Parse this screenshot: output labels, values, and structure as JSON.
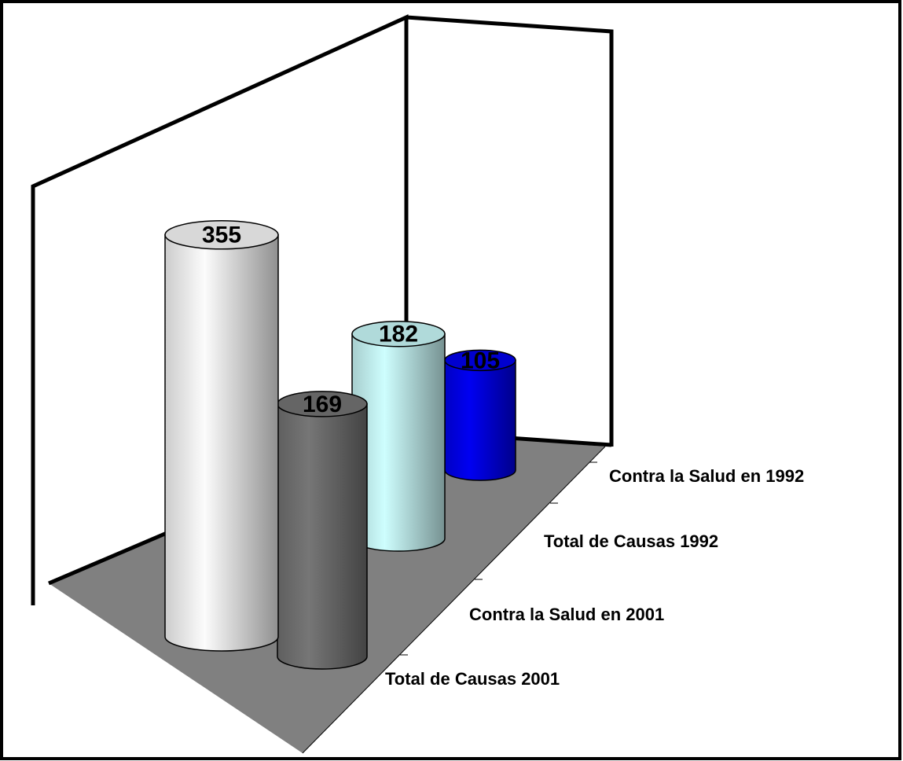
{
  "chart_data": {
    "type": "bar3d",
    "categories": [
      "Total de Causas 2001",
      "Contra la Salud en 2001",
      "Total de Causas 1992",
      "Contra la Salud en 1992"
    ],
    "values": [
      355,
      169,
      182,
      105
    ],
    "colors": [
      "#f0f0f0",
      "#707070",
      "#c4f2f2",
      "#0000e6"
    ]
  }
}
